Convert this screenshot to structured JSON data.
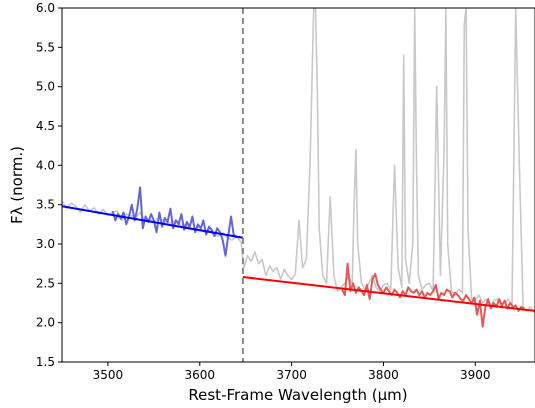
{
  "chart_data": {
    "type": "line",
    "xlabel": "Rest-Frame Wavelength (μm)",
    "ylabel": "Fλ (norm.)",
    "xlim": [
      3450,
      3965
    ],
    "ylim": [
      1.5,
      6.0
    ],
    "xticks": [
      {
        "value": 3500,
        "label": "3500"
      },
      {
        "value": 3600,
        "label": "3600"
      },
      {
        "value": 3700,
        "label": "3700"
      },
      {
        "value": 3800,
        "label": "3800"
      },
      {
        "value": 3900,
        "label": "3900"
      }
    ],
    "yticks": [
      {
        "value": 1.5,
        "label": "1.5"
      },
      {
        "value": 2.0,
        "label": "2.0"
      },
      {
        "value": 2.5,
        "label": "2.5"
      },
      {
        "value": 3.0,
        "label": "3.0"
      },
      {
        "value": 3.5,
        "label": "3.5"
      },
      {
        "value": 4.0,
        "label": "4.0"
      },
      {
        "value": 4.5,
        "label": "4.5"
      },
      {
        "value": 5.0,
        "label": "5.0"
      },
      {
        "value": 5.5,
        "label": "5.5"
      },
      {
        "value": 6.0,
        "label": "6.0"
      }
    ],
    "grid": false,
    "break_line": {
      "x": 3647,
      "style": "dashed",
      "color": "#808080"
    },
    "fits": [
      {
        "x": [
          3450,
          3647
        ],
        "y": [
          3.48,
          3.08
        ],
        "color": "#0000ff"
      },
      {
        "x": [
          3647,
          3965
        ],
        "y": [
          2.58,
          2.15
        ],
        "color": "#ff0000"
      }
    ],
    "series": [
      {
        "color": "#c8c8c8",
        "x": [
          3450,
          3455,
          3460,
          3465,
          3470,
          3475,
          3480,
          3485,
          3490,
          3495,
          3500,
          3505,
          3510,
          3515,
          3520,
          3525,
          3530,
          3535,
          3540,
          3545,
          3550,
          3555,
          3560,
          3565,
          3570,
          3575,
          3580,
          3585,
          3590,
          3595,
          3600,
          3605,
          3610,
          3615,
          3620,
          3625,
          3630,
          3635,
          3640,
          3645,
          3648,
          3652,
          3656,
          3660,
          3664,
          3668,
          3672,
          3676,
          3680,
          3684,
          3688,
          3692,
          3696,
          3700,
          3704,
          3708,
          3712,
          3716,
          3720,
          3724,
          3726,
          3728,
          3730,
          3734,
          3738,
          3742,
          3746,
          3750,
          3754,
          3758,
          3762,
          3766,
          3768,
          3770,
          3772,
          3776,
          3780,
          3784,
          3788,
          3792,
          3796,
          3800,
          3804,
          3808,
          3812,
          3816,
          3820,
          3822,
          3824,
          3828,
          3832,
          3834,
          3836,
          3838,
          3842,
          3846,
          3850,
          3854,
          3858,
          3862,
          3866,
          3868,
          3870,
          3874,
          3878,
          3882,
          3886,
          3888,
          3890,
          3892,
          3896,
          3900,
          3904,
          3908,
          3912,
          3916,
          3920,
          3924,
          3928,
          3932,
          3936,
          3940,
          3944,
          3948,
          3952,
          3956,
          3960,
          3965
        ],
        "y": [
          3.55,
          3.45,
          3.52,
          3.48,
          3.4,
          3.5,
          3.42,
          3.46,
          3.38,
          3.44,
          3.36,
          3.4,
          3.42,
          3.3,
          3.38,
          3.36,
          3.34,
          3.4,
          3.3,
          3.32,
          3.28,
          3.34,
          3.3,
          3.26,
          3.28,
          3.3,
          3.22,
          3.25,
          3.18,
          3.2,
          3.22,
          3.15,
          3.18,
          3.12,
          3.1,
          3.15,
          3.08,
          3.05,
          3.1,
          3.02,
          2.7,
          2.85,
          2.78,
          2.9,
          2.75,
          2.8,
          2.6,
          2.72,
          2.65,
          2.7,
          2.55,
          2.68,
          2.6,
          2.55,
          2.62,
          3.3,
          2.7,
          2.8,
          4.0,
          6.0,
          6.0,
          5.0,
          3.2,
          2.6,
          2.5,
          3.6,
          2.6,
          2.4,
          2.45,
          2.5,
          2.6,
          2.48,
          3.5,
          4.2,
          3.0,
          2.5,
          2.42,
          2.5,
          2.6,
          2.45,
          2.4,
          2.48,
          2.5,
          2.42,
          4.0,
          2.7,
          2.45,
          5.4,
          2.8,
          2.5,
          3.0,
          6.0,
          4.0,
          2.6,
          2.42,
          2.48,
          2.5,
          2.4,
          5.0,
          2.6,
          4.2,
          6.0,
          3.0,
          2.4,
          2.35,
          2.42,
          2.38,
          5.8,
          6.0,
          3.2,
          2.3,
          2.28,
          2.35,
          2.25,
          2.3,
          2.2,
          2.28,
          2.3,
          2.22,
          2.25,
          2.3,
          2.2,
          6.0,
          4.0,
          2.2,
          2.15,
          2.2,
          2.12
        ]
      },
      {
        "color": "#6466d8",
        "x": [
          3505,
          3508,
          3511,
          3514,
          3517,
          3520,
          3523,
          3526,
          3529,
          3532,
          3535,
          3538,
          3541,
          3544,
          3547,
          3550,
          3553,
          3556,
          3559,
          3562,
          3565,
          3568,
          3571,
          3574,
          3577,
          3580,
          3583,
          3586,
          3589,
          3592,
          3595,
          3598,
          3601,
          3604,
          3607,
          3610,
          3613,
          3616,
          3619,
          3622,
          3625,
          3628,
          3631,
          3634,
          3637,
          3640
        ],
        "y": [
          3.42,
          3.3,
          3.38,
          3.32,
          3.4,
          3.25,
          3.35,
          3.5,
          3.3,
          3.45,
          3.72,
          3.2,
          3.35,
          3.28,
          3.38,
          3.3,
          3.15,
          3.4,
          3.22,
          3.33,
          3.28,
          3.45,
          3.2,
          3.3,
          3.25,
          3.38,
          3.18,
          3.28,
          3.22,
          3.35,
          3.15,
          3.25,
          3.2,
          3.3,
          3.12,
          3.22,
          3.18,
          3.1,
          3.2,
          3.15,
          3.05,
          2.85,
          3.1,
          3.35,
          3.12,
          3.08
        ]
      },
      {
        "color": "#e05a5a",
        "x": [
          3755,
          3758,
          3761,
          3764,
          3767,
          3770,
          3773,
          3776,
          3779,
          3782,
          3785,
          3788,
          3791,
          3794,
          3797,
          3800,
          3803,
          3806,
          3809,
          3812,
          3815,
          3818,
          3821,
          3824,
          3827,
          3830,
          3833,
          3836,
          3839,
          3842,
          3845,
          3848,
          3851,
          3854,
          3857,
          3860,
          3863,
          3866,
          3869,
          3872,
          3875,
          3878,
          3881,
          3884,
          3887,
          3890,
          3893,
          3896,
          3899,
          3902,
          3905,
          3908,
          3911,
          3914,
          3917,
          3920,
          3923,
          3926,
          3929,
          3932,
          3935,
          3938,
          3941,
          3944,
          3947,
          3950,
          3953
        ],
        "y": [
          2.42,
          2.35,
          2.75,
          2.4,
          2.5,
          2.38,
          2.45,
          2.4,
          2.35,
          2.48,
          2.3,
          2.55,
          2.62,
          2.48,
          2.42,
          2.38,
          2.45,
          2.4,
          2.35,
          2.42,
          2.38,
          2.32,
          2.4,
          2.35,
          2.45,
          2.4,
          2.38,
          2.42,
          2.35,
          2.4,
          2.32,
          2.38,
          2.35,
          2.4,
          2.48,
          2.3,
          2.38,
          2.35,
          2.42,
          2.4,
          2.32,
          2.38,
          2.35,
          2.3,
          2.28,
          2.35,
          2.3,
          2.25,
          2.32,
          2.1,
          2.28,
          1.95,
          2.2,
          2.3,
          2.18,
          2.25,
          2.2,
          2.3,
          2.22,
          2.28,
          2.18,
          2.25,
          2.2,
          2.22,
          2.15,
          2.2,
          2.18
        ]
      }
    ]
  }
}
